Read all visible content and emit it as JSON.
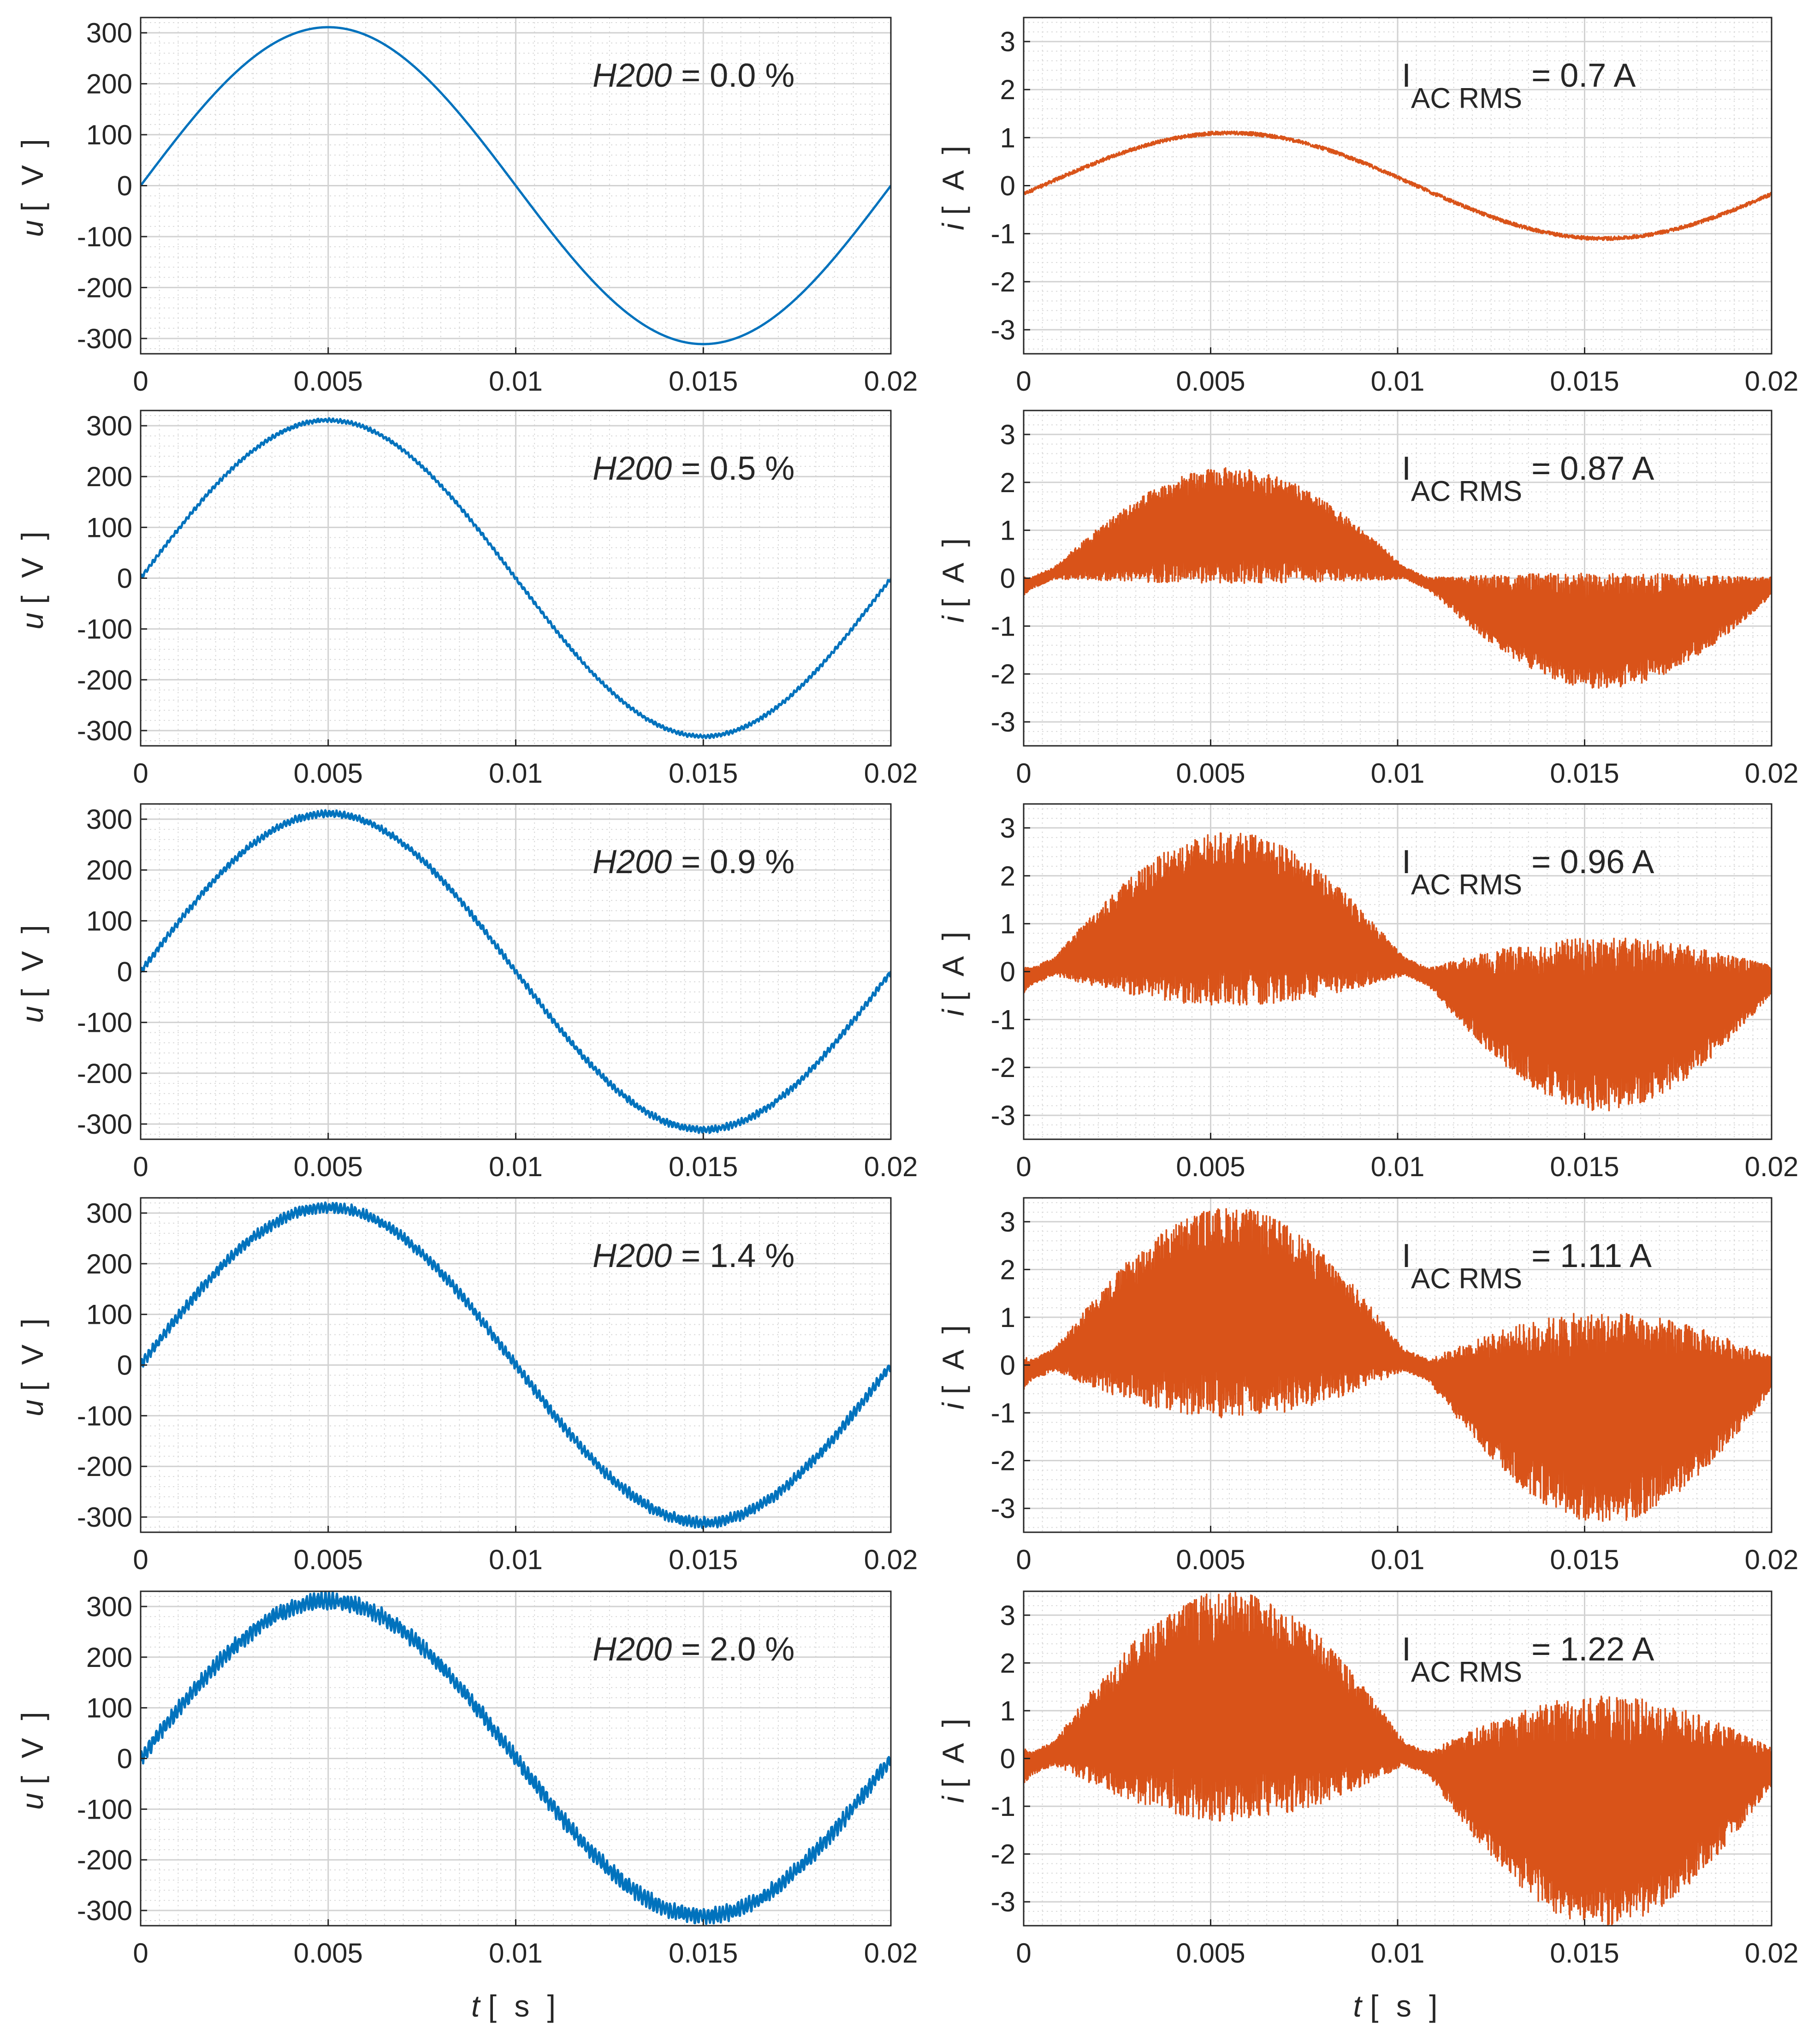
{
  "figure": {
    "x_axis_label": {
      "symbol": "t",
      "unit": "[ s ]"
    },
    "x_ticks": [
      "0",
      "0.005",
      "0.01",
      "0.015",
      "0.02"
    ]
  },
  "colors": {
    "voltage": "#0072BD",
    "current": "#D95319"
  },
  "annotation_labels": {
    "voltage_key": "H200",
    "current_prefix": "I",
    "current_subscript": "AC RMS"
  },
  "chart_data": [
    {
      "id": "u1",
      "type": "line",
      "quantity": "voltage",
      "ylabel": {
        "symbol": "u",
        "unit": "[ V ]"
      },
      "xlim": [
        0,
        0.02
      ],
      "ylim": [
        -330,
        330
      ],
      "y_ticks": [
        "300",
        "200",
        "100",
        "0",
        "-100",
        "-200",
        "-300"
      ],
      "series": [
        {
          "name": "u",
          "amplitude": 311,
          "frequency_hz": 50,
          "ripple_amplitude": 0
        }
      ],
      "annotation": {
        "key": "H200",
        "value": "= 0.0 %"
      }
    },
    {
      "id": "i1",
      "type": "line",
      "quantity": "current",
      "ylabel": {
        "symbol": "i",
        "unit": "[ A ]"
      },
      "xlim": [
        0,
        0.02
      ],
      "ylim": [
        -3.5,
        3.5
      ],
      "y_ticks": [
        "3",
        "2",
        "1",
        "0",
        "-1",
        "-2",
        "-3"
      ],
      "series": [
        {
          "name": "i",
          "envelope_peak": 1.1,
          "ripple_peak": 0.15
        }
      ],
      "annotation": {
        "label": "I",
        "subscript": "AC RMS",
        "value": "= 0.7 A"
      }
    },
    {
      "id": "u2",
      "type": "line",
      "quantity": "voltage",
      "ylabel": {
        "symbol": "u",
        "unit": "[ V ]"
      },
      "xlim": [
        0,
        0.02
      ],
      "ylim": [
        -330,
        330
      ],
      "y_ticks": [
        "300",
        "200",
        "100",
        "0",
        "-100",
        "-200",
        "-300"
      ],
      "series": [
        {
          "name": "u",
          "amplitude": 311,
          "frequency_hz": 50,
          "ripple_amplitude": 3
        }
      ],
      "annotation": {
        "key": "H200",
        "value": "= 0.5 %"
      }
    },
    {
      "id": "i2",
      "type": "line",
      "quantity": "current",
      "ylabel": {
        "symbol": "i",
        "unit": "[ A ]"
      },
      "xlim": [
        0,
        0.02
      ],
      "ylim": [
        -3.5,
        3.5
      ],
      "y_ticks": [
        "3",
        "2",
        "1",
        "0",
        "-1",
        "-2",
        "-3"
      ],
      "series": [
        {
          "name": "i",
          "envelope_peak": 1.1,
          "ripple_peak": 1.2
        }
      ],
      "annotation": {
        "label": "I",
        "subscript": "AC RMS",
        "value": "= 0.87 A"
      }
    },
    {
      "id": "u3",
      "type": "line",
      "quantity": "voltage",
      "ylabel": {
        "symbol": "u",
        "unit": "[ V ]"
      },
      "xlim": [
        0,
        0.02
      ],
      "ylim": [
        -330,
        330
      ],
      "y_ticks": [
        "300",
        "200",
        "100",
        "0",
        "-100",
        "-200",
        "-300"
      ],
      "series": [
        {
          "name": "u",
          "amplitude": 311,
          "frequency_hz": 50,
          "ripple_amplitude": 5
        }
      ],
      "annotation": {
        "key": "H200",
        "value": "= 0.9 %"
      }
    },
    {
      "id": "i3",
      "type": "line",
      "quantity": "current",
      "ylabel": {
        "symbol": "i",
        "unit": "[ A ]"
      },
      "xlim": [
        0,
        0.02
      ],
      "ylim": [
        -3.5,
        3.5
      ],
      "y_ticks": [
        "3",
        "2",
        "1",
        "0",
        "-1",
        "-2",
        "-3"
      ],
      "series": [
        {
          "name": "i",
          "envelope_peak": 1.1,
          "ripple_peak": 1.8
        }
      ],
      "annotation": {
        "label": "I",
        "subscript": "AC RMS",
        "value": "= 0.96 A"
      }
    },
    {
      "id": "u4",
      "type": "line",
      "quantity": "voltage",
      "ylabel": {
        "symbol": "u",
        "unit": "[ V ]"
      },
      "xlim": [
        0,
        0.02
      ],
      "ylim": [
        -330,
        330
      ],
      "y_ticks": [
        "300",
        "200",
        "100",
        "0",
        "-100",
        "-200",
        "-300"
      ],
      "series": [
        {
          "name": "u",
          "amplitude": 311,
          "frequency_hz": 50,
          "ripple_amplitude": 8
        }
      ],
      "annotation": {
        "key": "H200",
        "value": "= 1.4 %"
      }
    },
    {
      "id": "i4",
      "type": "line",
      "quantity": "current",
      "ylabel": {
        "symbol": "i",
        "unit": "[ A ]"
      },
      "xlim": [
        0,
        0.02
      ],
      "ylim": [
        -3.5,
        3.5
      ],
      "y_ticks": [
        "3",
        "2",
        "1",
        "0",
        "-1",
        "-2",
        "-3"
      ],
      "series": [
        {
          "name": "i",
          "envelope_peak": 1.1,
          "ripple_peak": 2.2
        }
      ],
      "annotation": {
        "label": "I",
        "subscript": "AC RMS",
        "value": "= 1.11 A"
      }
    },
    {
      "id": "u5",
      "type": "line",
      "quantity": "voltage",
      "ylabel": {
        "symbol": "u",
        "unit": "[ V ]"
      },
      "xlim": [
        0,
        0.02
      ],
      "ylim": [
        -330,
        330
      ],
      "y_ticks": [
        "300",
        "200",
        "100",
        "0",
        "-100",
        "-200",
        "-300"
      ],
      "series": [
        {
          "name": "u",
          "amplitude": 311,
          "frequency_hz": 50,
          "ripple_amplitude": 12
        }
      ],
      "annotation": {
        "key": "H200",
        "value": "= 2.0 %"
      }
    },
    {
      "id": "i5",
      "type": "line",
      "quantity": "current",
      "ylabel": {
        "symbol": "i",
        "unit": "[ A ]"
      },
      "xlim": [
        0,
        0.02
      ],
      "ylim": [
        -3.5,
        3.5
      ],
      "y_ticks": [
        "3",
        "2",
        "1",
        "0",
        "-1",
        "-2",
        "-3"
      ],
      "series": [
        {
          "name": "i",
          "envelope_peak": 1.1,
          "ripple_peak": 2.4
        }
      ],
      "annotation": {
        "label": "I",
        "subscript": "AC RMS",
        "value": "= 1.22 A"
      }
    }
  ]
}
